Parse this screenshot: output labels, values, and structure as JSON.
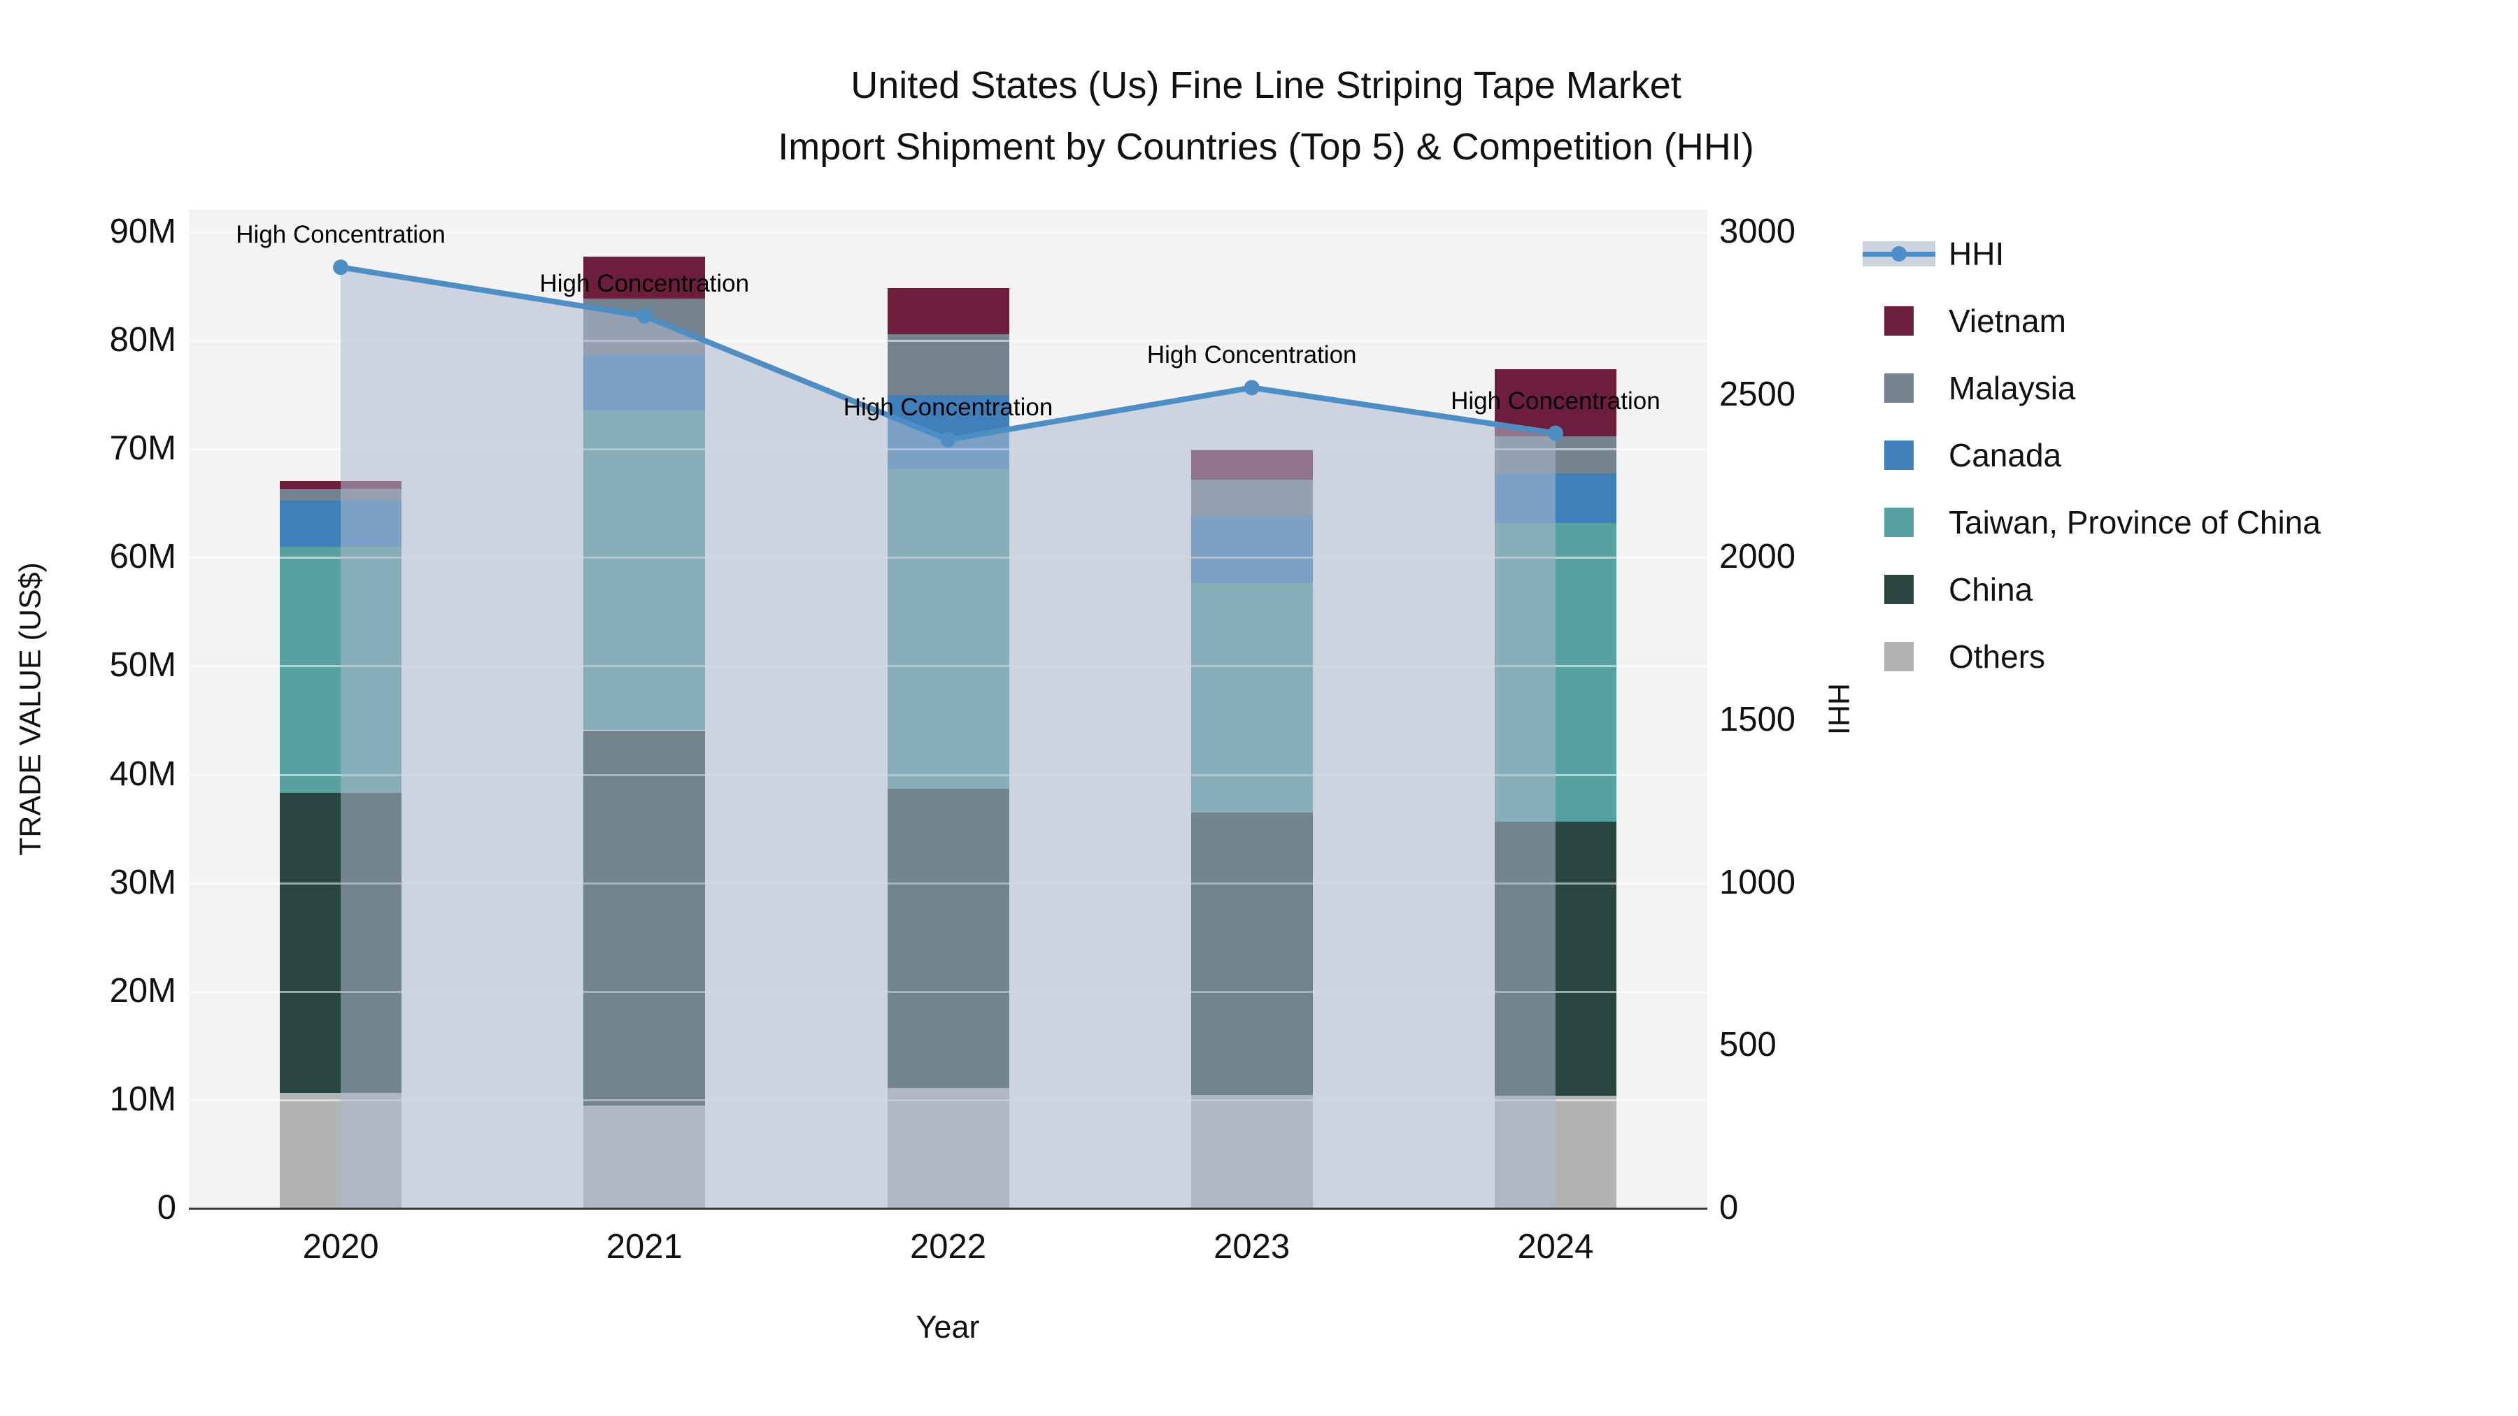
{
  "title": {
    "line1": "United States (Us) Fine Line Striping Tape Market",
    "line2": "Import Shipment by Countries (Top 5) & Competition (HHI)"
  },
  "axes": {
    "left": {
      "title": "TRADE VALUE (US$)",
      "ticks": [
        "0",
        "10M",
        "20M",
        "30M",
        "40M",
        "50M",
        "60M",
        "70M",
        "80M",
        "90M"
      ]
    },
    "right": {
      "title": "HHI",
      "ticks": [
        "0",
        "500",
        "1000",
        "1500",
        "2000",
        "2500",
        "3000"
      ]
    },
    "x": {
      "title": "Year"
    }
  },
  "annotation": {
    "text": "High Concentration"
  },
  "legend": [
    {
      "label": "HHI",
      "type": "line",
      "color": "#4d8fc4",
      "band": "#ccd3de"
    },
    {
      "label": "Vietnam",
      "type": "square",
      "color": "#6d1e3d"
    },
    {
      "label": "Malaysia",
      "type": "square",
      "color": "#75828f"
    },
    {
      "label": "Canada",
      "type": "square",
      "color": "#4080ba"
    },
    {
      "label": "Taiwan, Province of China",
      "type": "square",
      "color": "#58a1a1"
    },
    {
      "label": "China",
      "type": "square",
      "color": "#28453f"
    },
    {
      "label": "Others",
      "type": "square",
      "color": "#b2b3b4"
    }
  ],
  "colors": {
    "plot_bg": "#f3f3f4",
    "gridline": "rgba(255,255,255,0.55)",
    "hhi_line": "#4d8fc4",
    "hhi_fill": "rgba(174,186,205,0.55)",
    "axis_line": "#3c3c3c"
  },
  "chart_data": {
    "type": "bar",
    "subtype": "stacked-bars-with-line",
    "categories": [
      "2020",
      "2021",
      "2022",
      "2023",
      "2024"
    ],
    "series": [
      {
        "name": "Others",
        "color": "#b2b3b4",
        "values": [
          10.6,
          9.4,
          11.0,
          10.4,
          10.3
        ]
      },
      {
        "name": "China",
        "color": "#28453f",
        "values": [
          27.6,
          34.6,
          27.6,
          26.0,
          25.3
        ]
      },
      {
        "name": "Taiwan, Province of China",
        "color": "#58a1a1",
        "values": [
          22.7,
          29.5,
          29.5,
          21.2,
          27.5
        ]
      },
      {
        "name": "Canada",
        "color": "#4080ba",
        "values": [
          4.3,
          5.1,
          6.8,
          6.2,
          4.6
        ]
      },
      {
        "name": "Malaysia",
        "color": "#75828f",
        "values": [
          1.1,
          5.2,
          5.6,
          3.3,
          3.4
        ]
      },
      {
        "name": "Vietnam",
        "color": "#6d1e3d",
        "values": [
          0.7,
          3.9,
          4.3,
          2.8,
          6.2
        ]
      }
    ],
    "line": {
      "name": "HHI",
      "color": "#4d8fc4",
      "fill": "rgba(174,186,205,0.55)",
      "values": [
        2890,
        2740,
        2360,
        2520,
        2380
      ],
      "annotations": [
        "High Concentration",
        "High Concentration",
        "High Concentration",
        "High Concentration",
        "High Concentration"
      ]
    },
    "title": "United States (Us) Fine Line Striping Tape Market Import Shipment by Countries (Top 5) & Competition (HHI)",
    "xlabel": "Year",
    "ylabel_left": "TRADE VALUE (US$)",
    "ylabel_right": "HHI",
    "ylim_left": [
      0,
      90
    ],
    "ylim_right": [
      0,
      3000
    ],
    "left_units": "millions US$",
    "grid": true,
    "legend_position": "right"
  }
}
